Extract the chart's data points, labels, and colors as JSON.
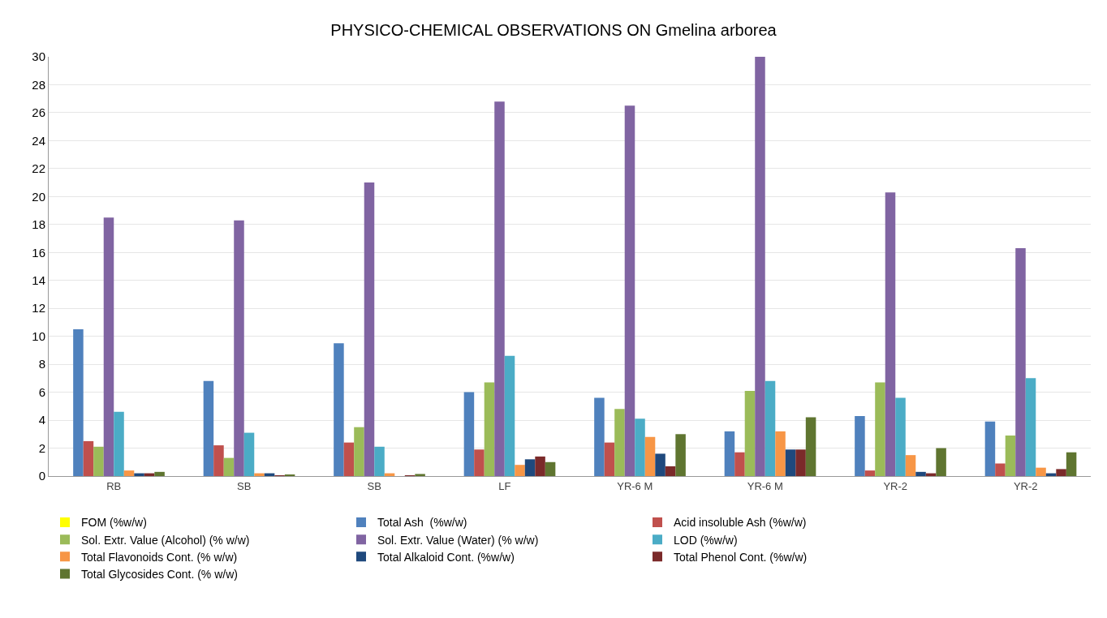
{
  "chart_data": {
    "type": "bar",
    "title": "PHYSICO-CHEMICAL OBSERVATIONS ON Gmelina arborea",
    "categories": [
      "RB",
      "SB",
      "SB",
      "LF",
      "YR-6 M",
      "YR-6 M",
      "YR-2",
      "YR-2"
    ],
    "series": [
      {
        "name": "FOM (%w/w)",
        "color": "#ffff00",
        "values": [
          0,
          0,
          0,
          0,
          0,
          0,
          0,
          0
        ]
      },
      {
        "name": "Total Ash  (%w/w)",
        "color": "#4f81bd",
        "values": [
          10.5,
          6.8,
          9.5,
          6.0,
          5.6,
          3.2,
          4.3,
          3.9
        ]
      },
      {
        "name": "Acid insoluble Ash (%w/w)",
        "color": "#c0504d",
        "values": [
          2.5,
          2.2,
          2.4,
          1.9,
          2.4,
          1.7,
          0.4,
          0.9
        ]
      },
      {
        "name": "Sol. Extr. Value (Alcohol) (% w/w)",
        "color": "#9bbb59",
        "values": [
          2.1,
          1.3,
          3.5,
          6.7,
          4.8,
          6.1,
          6.7,
          2.9
        ]
      },
      {
        "name": "Sol. Extr. Value (Water) (% w/w)",
        "color": "#8064a2",
        "values": [
          18.5,
          18.3,
          21.0,
          26.8,
          26.5,
          30.0,
          20.3,
          16.3
        ]
      },
      {
        "name": "LOD (%w/w)",
        "color": "#4bacc6",
        "values": [
          4.6,
          3.1,
          2.1,
          8.6,
          4.1,
          6.8,
          5.6,
          7.0
        ]
      },
      {
        "name": "Total Flavonoids Cont. (% w/w)",
        "color": "#f79646",
        "values": [
          0.4,
          0.2,
          0.2,
          0.8,
          2.8,
          3.2,
          1.5,
          0.6
        ]
      },
      {
        "name": "Total Alkaloid Cont. (%w/w)",
        "color": "#1f497d",
        "values": [
          0.2,
          0.2,
          0,
          1.2,
          1.6,
          1.9,
          0.3,
          0.2
        ]
      },
      {
        "name": "Total Phenol Cont. (%w/w)",
        "color": "#7b2a2a",
        "values": [
          0.2,
          0.05,
          0.05,
          1.4,
          0.7,
          1.9,
          0.2,
          0.5
        ]
      },
      {
        "name": "Total Glycosides Cont. (% w/w)",
        "color": "#5f7530",
        "values": [
          0.3,
          0.1,
          0.15,
          1.0,
          3.0,
          4.2,
          2.0,
          1.7
        ]
      }
    ],
    "ylim": [
      0,
      30
    ],
    "yticks": [
      0,
      2,
      4,
      6,
      8,
      10,
      12,
      14,
      16,
      18,
      20,
      22,
      24,
      26,
      28,
      30
    ],
    "grid": "y",
    "legend": "bottom"
  }
}
